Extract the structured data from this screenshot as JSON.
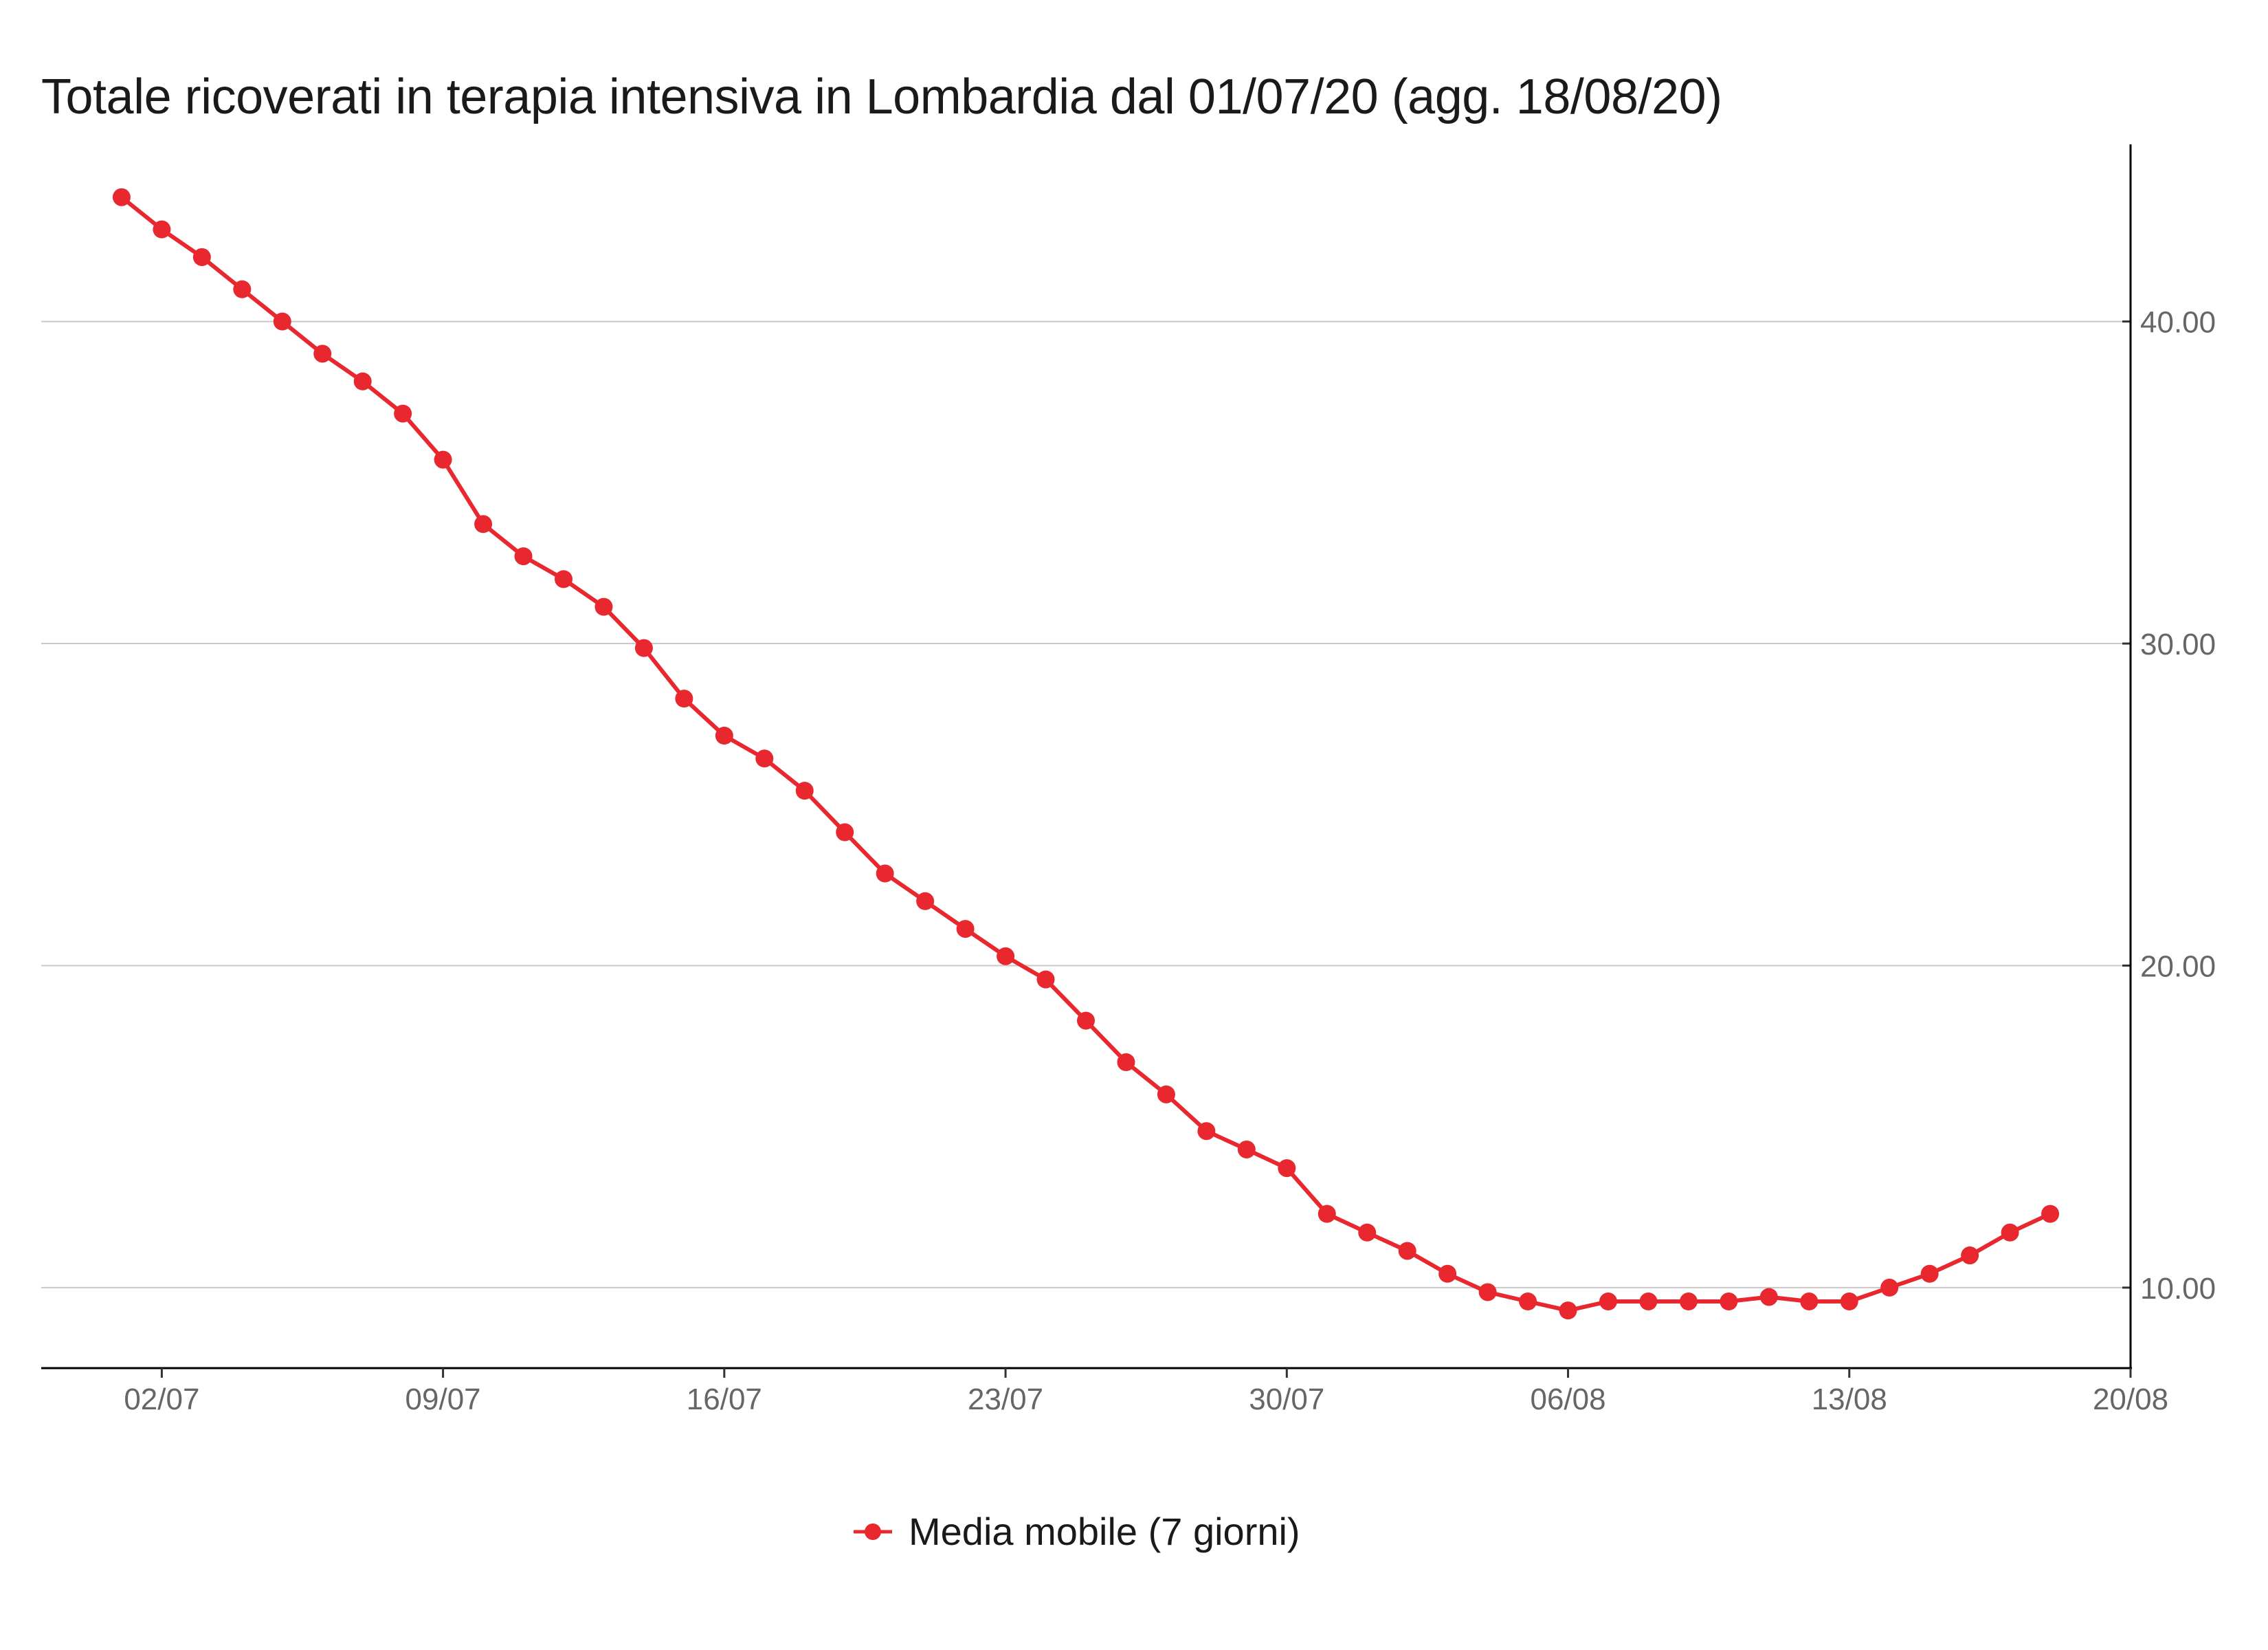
{
  "chart_data": {
    "type": "line",
    "title": "Totale ricoverati in terapia intensiva in Lombardia dal 01/07/20 (agg. 18/08/20)",
    "xlabel": "",
    "ylabel": "",
    "x_ticks": [
      "02/07",
      "09/07",
      "16/07",
      "23/07",
      "30/07",
      "06/08",
      "13/08",
      "20/08"
    ],
    "y_ticks": [
      "10.00",
      "20.00",
      "30.00",
      "40.00"
    ],
    "y_tick_values": [
      10,
      20,
      30,
      40
    ],
    "ylim": [
      7.5,
      45.5
    ],
    "xlim": [
      "2020-06-29",
      "2020-08-20"
    ],
    "y_axis_position": "right",
    "grid": "horizontal",
    "legend_position": "bottom",
    "series": [
      {
        "name": "Media mobile (7 giorni)",
        "color": "#e8282e",
        "x": [
          "2020-07-01",
          "2020-07-02",
          "2020-07-03",
          "2020-07-04",
          "2020-07-05",
          "2020-07-06",
          "2020-07-07",
          "2020-07-08",
          "2020-07-09",
          "2020-07-10",
          "2020-07-11",
          "2020-07-12",
          "2020-07-13",
          "2020-07-14",
          "2020-07-15",
          "2020-07-16",
          "2020-07-17",
          "2020-07-18",
          "2020-07-19",
          "2020-07-20",
          "2020-07-21",
          "2020-07-22",
          "2020-07-23",
          "2020-07-24",
          "2020-07-25",
          "2020-07-26",
          "2020-07-27",
          "2020-07-28",
          "2020-07-29",
          "2020-07-30",
          "2020-07-31",
          "2020-08-01",
          "2020-08-02",
          "2020-08-03",
          "2020-08-04",
          "2020-08-05",
          "2020-08-06",
          "2020-08-07",
          "2020-08-08",
          "2020-08-09",
          "2020-08-10",
          "2020-08-11",
          "2020-08-12",
          "2020-08-13",
          "2020-08-14",
          "2020-08-15",
          "2020-08-16",
          "2020-08-17",
          "2020-08-18"
        ],
        "values": [
          43.86,
          42.86,
          42.0,
          41.0,
          40.0,
          39.0,
          38.14,
          37.14,
          35.71,
          33.71,
          32.71,
          32.0,
          31.14,
          29.86,
          28.29,
          27.14,
          26.43,
          25.43,
          24.14,
          22.86,
          22.0,
          21.14,
          20.29,
          19.57,
          18.29,
          17.0,
          16.0,
          14.86,
          14.29,
          13.71,
          12.29,
          11.71,
          11.14,
          10.43,
          9.86,
          9.57,
          9.29,
          9.57,
          9.57,
          9.57,
          9.57,
          9.71,
          9.57,
          9.57,
          10.0,
          10.43,
          11.0,
          11.71,
          12.29
        ]
      }
    ]
  },
  "legend": {
    "label": "Media mobile (7 giorni)"
  }
}
